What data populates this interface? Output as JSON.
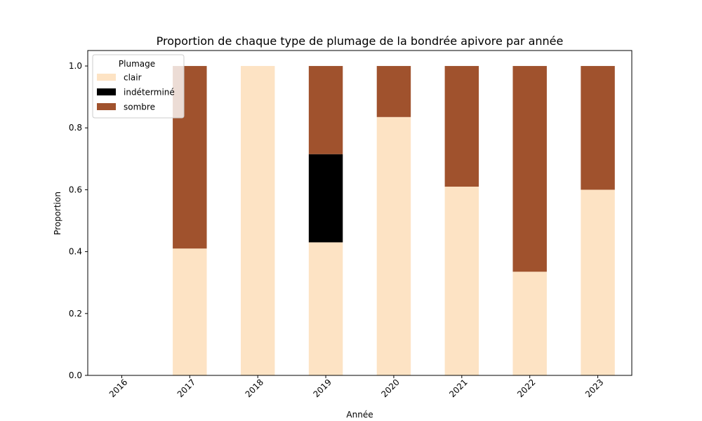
{
  "chart_data": {
    "type": "bar",
    "stacked": true,
    "title": "Proportion de chaque type de plumage de la bondrée apivore par année",
    "xlabel": "Année",
    "ylabel": "Proportion",
    "ylim": [
      0,
      1.05
    ],
    "yticks": [
      "0.0",
      "0.2",
      "0.4",
      "0.6",
      "0.8",
      "1.0"
    ],
    "categories": [
      "2016",
      "2017",
      "2018",
      "2019",
      "2020",
      "2021",
      "2022",
      "2023"
    ],
    "series": [
      {
        "name": "clair",
        "color": "#FDE3C4",
        "values": [
          0,
          0.41,
          1.0,
          0.43,
          0.835,
          0.61,
          0.335,
          0.6
        ]
      },
      {
        "name": "indéterminé",
        "color": "#000000",
        "values": [
          0,
          0,
          0,
          0.285,
          0,
          0,
          0,
          0
        ]
      },
      {
        "name": "sombre",
        "color": "#A0522D",
        "values": [
          0,
          0.59,
          0,
          0.285,
          0.165,
          0.39,
          0.665,
          0.4
        ]
      }
    ],
    "legend": {
      "title": "Plumage",
      "position": "top-left"
    },
    "grid": false
  }
}
